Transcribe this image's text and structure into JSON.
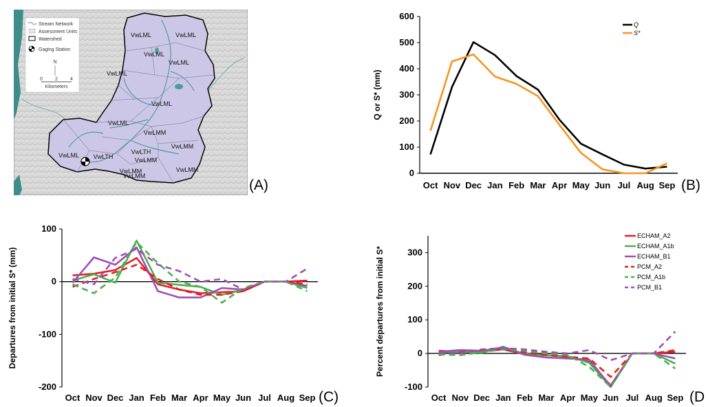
{
  "panels": {
    "A": {
      "label": "(A)",
      "legend": [
        "Stream Network",
        "Assessment Units",
        "Watershed",
        "Gaging Station"
      ],
      "scale_text": "Kilometers",
      "scale_ticks": [
        "0",
        "2",
        "4"
      ],
      "north": "N",
      "units": [
        "VwLML",
        "VwLML",
        "VwLML",
        "VwLML",
        "VwLML",
        "VwLML",
        "VwLML",
        "VwLMM",
        "VwLMM",
        "VwLMM",
        "VwLMM",
        "VwLMM",
        "VwLTH",
        "VwLTH",
        "VwLMM",
        "VwLML"
      ]
    },
    "B": {
      "label": "(B)"
    },
    "C": {
      "label": "(C)"
    },
    "D": {
      "label": "(D"
    }
  },
  "chart_data": [
    {
      "id": "B",
      "type": "line",
      "categories": [
        "Oct",
        "Nov",
        "Dec",
        "Jan",
        "Feb",
        "Mar",
        "Apr",
        "May",
        "Jun",
        "Jul",
        "Aug",
        "Sep"
      ],
      "series": [
        {
          "name": "Q",
          "color": "#000000",
          "dash": "solid",
          "values": [
            72,
            330,
            502,
            452,
            372,
            320,
            205,
            113,
            72,
            33,
            18,
            25
          ]
        },
        {
          "name": "S*",
          "color": "#F7941D",
          "dash": "solid",
          "values": [
            162,
            428,
            455,
            370,
            342,
            295,
            185,
            78,
            15,
            0,
            0,
            38
          ]
        }
      ],
      "ylabel": "Q or S* (mm)",
      "ylim": [
        0,
        600
      ],
      "yticks": [
        0,
        100,
        200,
        300,
        400,
        500,
        600
      ],
      "legend_position": "top-right",
      "grid": false
    },
    {
      "id": "C",
      "type": "line",
      "categories": [
        "Oct",
        "Nov",
        "Dec",
        "Jan",
        "Feb",
        "Mar",
        "Apr",
        "May",
        "Jun",
        "Jul",
        "Aug",
        "Sep"
      ],
      "series": [
        {
          "name": "ECHAM_A2",
          "color": "#E31E24",
          "dash": "solid",
          "values": [
            12,
            15,
            22,
            45,
            -5,
            -15,
            -22,
            -20,
            -18,
            0,
            0,
            2
          ]
        },
        {
          "name": "ECHAM_A1b",
          "color": "#4CAF50",
          "dash": "solid",
          "values": [
            2,
            14,
            -2,
            78,
            -2,
            -6,
            -10,
            -25,
            -15,
            0,
            0,
            -12
          ]
        },
        {
          "name": "ECHAM_B1",
          "color": "#9B4FB5",
          "dash": "solid",
          "values": [
            -2,
            46,
            32,
            65,
            -18,
            -30,
            -30,
            -12,
            -15,
            0,
            0,
            -8
          ]
        },
        {
          "name": "PCM_A2",
          "color": "#E31E24",
          "dash": "dashed",
          "values": [
            -10,
            5,
            18,
            32,
            5,
            -15,
            -25,
            -25,
            -18,
            0,
            0,
            -5
          ]
        },
        {
          "name": "PCM_A1b",
          "color": "#4CAF50",
          "dash": "dashed",
          "values": [
            -5,
            -22,
            8,
            75,
            35,
            0,
            -10,
            -40,
            -12,
            0,
            0,
            -18
          ]
        },
        {
          "name": "PCM_B1",
          "color": "#9B4FB5",
          "dash": "dashed",
          "values": [
            5,
            -5,
            45,
            62,
            32,
            20,
            0,
            5,
            -15,
            0,
            0,
            25
          ]
        }
      ],
      "ylabel": "Departures from initial S* (mm)",
      "ylim": [
        -200,
        100
      ],
      "yticks": [
        -200,
        -100,
        0,
        100
      ],
      "grid": false
    },
    {
      "id": "D",
      "type": "line",
      "categories": [
        "Oct",
        "Nov",
        "Dec",
        "Jan",
        "Feb",
        "Mar",
        "Apr",
        "May",
        "Jun",
        "Jul",
        "Aug",
        "Sep"
      ],
      "series": [
        {
          "name": "ECHAM_A2",
          "color": "#E31E24",
          "dash": "solid",
          "values": [
            8,
            5,
            6,
            12,
            -2,
            -5,
            -10,
            -25,
            -95,
            0,
            0,
            5
          ]
        },
        {
          "name": "ECHAM_A1b",
          "color": "#4CAF50",
          "dash": "solid",
          "values": [
            3,
            5,
            2,
            20,
            -2,
            -6,
            -8,
            -28,
            -100,
            0,
            0,
            -30
          ]
        },
        {
          "name": "ECHAM_B1",
          "color": "#9B4FB5",
          "dash": "solid",
          "values": [
            5,
            10,
            8,
            18,
            -4,
            -12,
            -15,
            -18,
            -98,
            0,
            0,
            -15
          ]
        },
        {
          "name": "PCM_A2",
          "color": "#E31E24",
          "dash": "dashed",
          "values": [
            -5,
            3,
            10,
            15,
            3,
            -5,
            -10,
            -15,
            -70,
            0,
            0,
            10
          ]
        },
        {
          "name": "PCM_A1b",
          "color": "#4CAF50",
          "dash": "dashed",
          "values": [
            -3,
            -5,
            4,
            12,
            8,
            0,
            -5,
            -40,
            -100,
            0,
            0,
            -45
          ]
        },
        {
          "name": "PCM_B1",
          "color": "#9B4FB5",
          "dash": "dashed",
          "values": [
            2,
            0,
            12,
            16,
            12,
            5,
            0,
            10,
            -20,
            0,
            0,
            65
          ]
        }
      ],
      "ylabel": "Percent departures from initial S*",
      "ylim": [
        -100,
        350
      ],
      "yticks": [
        -100,
        0,
        100,
        200,
        300
      ],
      "legend_position": "top-right",
      "grid": false
    }
  ]
}
